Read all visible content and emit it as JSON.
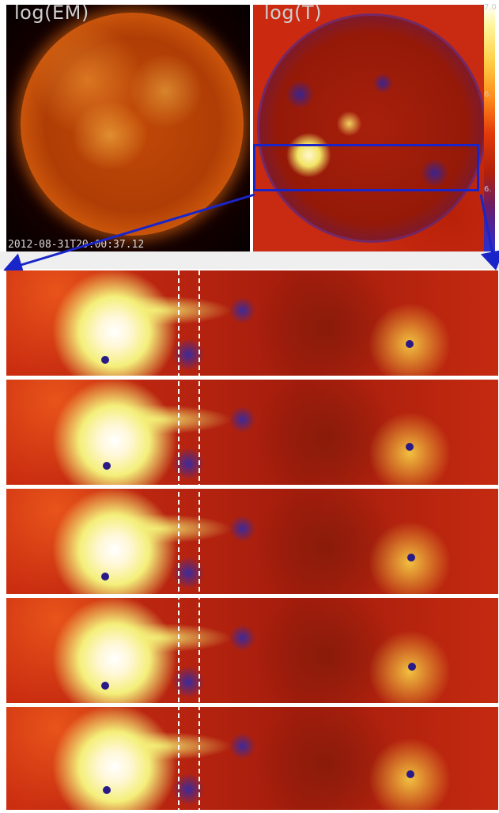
{
  "em_panel": {
    "title": "log(EM)",
    "timestamp": "2012-08-31T20:00:37.12"
  },
  "t_panel": {
    "title": "log(T)"
  },
  "colorbar": {
    "labels": [
      "7.0",
      "6.",
      "6."
    ],
    "gradient": [
      "#ffffff",
      "#fff7a0",
      "#ffd24a",
      "#ff8a1a",
      "#e33a0a",
      "#b2200a",
      "#6a1c6a",
      "#2a2fd0"
    ]
  },
  "colors": {
    "zoom_box": "#1a25c9",
    "arrow": "#1a25c9",
    "dashed_line": "#ffffff"
  },
  "sequence": {
    "frame_count": 5
  }
}
